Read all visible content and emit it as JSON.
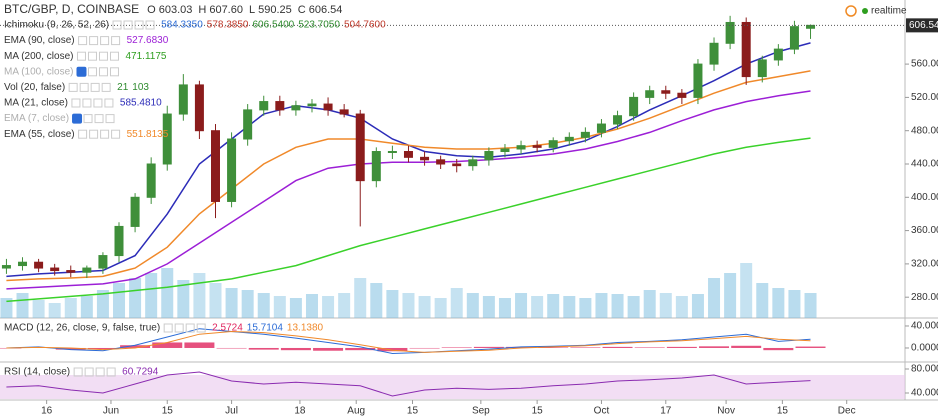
{
  "header": {
    "symbol": "BTC/GBP, D, COINBASE",
    "ohlc": [
      {
        "letter": "O",
        "value": "603.03"
      },
      {
        "letter": "H",
        "value": "607.60"
      },
      {
        "letter": "L",
        "value": "590.25"
      },
      {
        "letter": "C",
        "value": "606.54"
      }
    ]
  },
  "realtime": "realtime",
  "chart_data": [
    {
      "type": "candlestick",
      "x": [
        0,
        4,
        8,
        12,
        16,
        20,
        24,
        28,
        32,
        36,
        40,
        44,
        48,
        52,
        56,
        60,
        64,
        68,
        72,
        76,
        80,
        84,
        88,
        92,
        96,
        100,
        104,
        108,
        112,
        116,
        120,
        124,
        128,
        132,
        136,
        140,
        144,
        148,
        152,
        156,
        160,
        164,
        168,
        172,
        176,
        180,
        184,
        188,
        192,
        196,
        200
      ],
      "open": [
        315,
        318,
        322,
        315,
        312,
        310,
        315,
        330,
        365,
        400,
        440,
        500,
        535,
        480,
        395,
        470,
        505,
        515,
        505,
        510,
        512,
        505,
        500,
        420,
        455,
        455,
        448,
        445,
        440,
        438,
        445,
        455,
        458,
        462,
        460,
        468,
        472,
        478,
        488,
        498,
        520,
        528,
        525,
        520,
        560,
        585,
        610,
        545,
        565,
        578,
        603.03
      ],
      "high": [
        326,
        328,
        326,
        320,
        318,
        318,
        334,
        370,
        405,
        448,
        510,
        548,
        540,
        488,
        478,
        512,
        522,
        522,
        516,
        518,
        520,
        512,
        505,
        460,
        462,
        462,
        455,
        450,
        446,
        450,
        460,
        464,
        468,
        468,
        472,
        478,
        484,
        494,
        504,
        526,
        534,
        534,
        530,
        566,
        592,
        618,
        616,
        570,
        584,
        612,
        607.6
      ],
      "low": [
        308,
        312,
        310,
        306,
        304,
        303,
        308,
        322,
        358,
        392,
        432,
        492,
        470,
        375,
        388,
        462,
        498,
        498,
        498,
        502,
        498,
        496,
        365,
        412,
        446,
        442,
        438,
        434,
        430,
        432,
        438,
        448,
        452,
        454,
        454,
        462,
        466,
        472,
        482,
        492,
        512,
        518,
        512,
        512,
        552,
        578,
        535,
        538,
        558,
        572,
        590.25
      ],
      "close": [
        318,
        322,
        315,
        312,
        310,
        315,
        330,
        365,
        400,
        440,
        500,
        535,
        480,
        395,
        470,
        505,
        515,
        505,
        510,
        512,
        505,
        500,
        420,
        455,
        455,
        448,
        445,
        440,
        438,
        445,
        455,
        458,
        462,
        460,
        468,
        472,
        478,
        488,
        498,
        520,
        528,
        525,
        520,
        560,
        585,
        610,
        545,
        565,
        578,
        605,
        606.54
      ],
      "volume": [
        20,
        25,
        18,
        15,
        20,
        22,
        28,
        35,
        40,
        45,
        50,
        38,
        45,
        35,
        30,
        28,
        25,
        22,
        20,
        24,
        22,
        25,
        40,
        35,
        28,
        25,
        22,
        20,
        30,
        25,
        22,
        20,
        25,
        22,
        24,
        22,
        20,
        25,
        24,
        22,
        28,
        25,
        22,
        24,
        40,
        45,
        55,
        35,
        30,
        28,
        25
      ],
      "up_color": "#3f8f3a",
      "down_color": "#8b1c1c",
      "volume_color": "#7fbfe0",
      "lines": {
        "x": [
          0,
          8,
          16,
          24,
          32,
          40,
          48,
          56,
          64,
          72,
          80,
          88,
          96,
          104,
          112,
          120,
          128,
          136,
          144,
          152,
          160,
          168,
          176,
          184,
          192,
          200
        ],
        "series": [
          {
            "color": "#2c2cb8",
            "values": [
              305,
              308,
              310,
              312,
              330,
              380,
              440,
              470,
              500,
              510,
              505,
              495,
              470,
              455,
              450,
              448,
              452,
              458,
              468,
              485,
              505,
              522,
              540,
              560,
              575,
              585.48
            ]
          },
          {
            "color": "#f0892a",
            "values": [
              300,
              302,
              303,
              305,
              315,
              340,
              380,
              410,
              440,
              460,
              470,
              470,
              465,
              460,
              458,
              458,
              460,
              465,
              472,
              482,
              495,
              510,
              525,
              538,
              545,
              551.81
            ]
          },
          {
            "color": "#9c1fd6",
            "values": [
              290,
              292,
              294,
              296,
              302,
              320,
              345,
              370,
              395,
              420,
              435,
              440,
              442,
              442,
              443,
              445,
              448,
              452,
              458,
              467,
              478,
              492,
              505,
              515,
              522,
              527.68
            ]
          },
          {
            "color": "#3ad12a",
            "values": [
              275,
              278,
              281,
              284,
              288,
              292,
              297,
              302,
              310,
              318,
              330,
              342,
              352,
              362,
              372,
              382,
              392,
              402,
              412,
              422,
              432,
              442,
              452,
              460,
              466,
              471.12
            ]
          }
        ]
      },
      "xlim": [
        -1.6,
        223.5
      ],
      "xticks": [
        {
          "value": 10,
          "label": "16"
        },
        {
          "value": 26,
          "label": "Jun"
        },
        {
          "value": 40,
          "label": "15"
        },
        {
          "value": 56,
          "label": "Jul"
        },
        {
          "value": 73,
          "label": "18"
        },
        {
          "value": 87,
          "label": "Aug"
        },
        {
          "value": 101,
          "label": "15"
        },
        {
          "value": 118,
          "label": "Sep"
        },
        {
          "value": 132,
          "label": "15"
        },
        {
          "value": 148,
          "label": "Oct"
        },
        {
          "value": 164,
          "label": "17"
        },
        {
          "value": 179,
          "label": "Nov"
        },
        {
          "value": 193,
          "label": "15"
        },
        {
          "value": 209,
          "label": "Dec"
        }
      ],
      "ylim": [
        255,
        637
      ],
      "yticks": [
        {
          "value": 280,
          "label": "280.00"
        },
        {
          "value": 320,
          "label": "320.00"
        },
        {
          "value": 360,
          "label": "360.00"
        },
        {
          "value": 400,
          "label": "400.00"
        },
        {
          "value": 440,
          "label": "440.00"
        },
        {
          "value": 480,
          "label": "480.00"
        },
        {
          "value": 520,
          "label": "520.00"
        },
        {
          "value": 560,
          "label": "560.00"
        }
      ],
      "grid": false,
      "legend": [
        {
          "label": "Ichimoku (9, 26, 52, 26)",
          "values": [
            {
              "text": "584.3350",
              "color": "#2c6cd6"
            },
            {
              "text": "578.3850",
              "color": "#c0392b"
            },
            {
              "text": "606.5400",
              "color": "#2e8b2e"
            },
            {
              "text": "523.7050",
              "color": "#2e8b2e"
            },
            {
              "text": "504.7600",
              "color": "#c0392b"
            }
          ]
        },
        {
          "label": "EMA (90, close)",
          "values": [
            {
              "text": "527.6830",
              "color": "#9c1fd6"
            }
          ]
        },
        {
          "label": "MA (200, close)",
          "values": [
            {
              "text": "471.1175",
              "color": "#2e9e1f"
            }
          ]
        },
        {
          "label": "MA (100, close)",
          "values": [],
          "faded": true
        },
        {
          "label": "Vol (20, false)",
          "values": [
            {
              "text": "21",
              "color": "#2e8b2e"
            },
            {
              "text": "103",
              "color": "#2e8b2e"
            }
          ]
        },
        {
          "label": "MA (21, close)",
          "values": [
            {
              "text": "585.4810",
              "color": "#2c2cb8"
            }
          ]
        },
        {
          "label": "EMA (7, close)",
          "values": [],
          "faded": true
        },
        {
          "label": "EMA (55, close)",
          "values": [
            {
              "text": "551.8135",
              "color": "#f0892a"
            }
          ]
        }
      ]
    },
    {
      "type": "macd",
      "label": "MACD (12, 26, close, 9, false, true)",
      "value_texts": [
        {
          "text": "2.5724",
          "color": "#e0245e"
        },
        {
          "text": "15.7104",
          "color": "#2c6cd6"
        },
        {
          "text": "13.1380",
          "color": "#f0892a"
        }
      ],
      "x": [
        0,
        8,
        16,
        24,
        32,
        40,
        48,
        56,
        64,
        72,
        80,
        88,
        96,
        104,
        112,
        120,
        128,
        136,
        144,
        152,
        160,
        168,
        176,
        184,
        192,
        200
      ],
      "series": [
        {
          "color": "#e0245e",
          "style": "histogram",
          "values": [
            0,
            1,
            -3,
            -2,
            5,
            10,
            10,
            0,
            -3,
            -4,
            -5,
            -4,
            -6,
            0,
            1,
            2,
            2,
            1,
            1,
            2,
            1,
            2,
            3,
            4,
            -4,
            2.57
          ]
        },
        {
          "color": "#2c6cd6",
          "values": [
            0,
            2,
            -3,
            -5,
            5,
            20,
            35,
            30,
            25,
            18,
            10,
            2,
            -10,
            -8,
            -5,
            -2,
            2,
            3,
            5,
            10,
            12,
            15,
            20,
            25,
            12,
            15.71
          ]
        },
        {
          "color": "#f0892a",
          "values": [
            0,
            1,
            0,
            -3,
            0,
            10,
            25,
            30,
            28,
            22,
            15,
            6,
            -4,
            -8,
            -6,
            -4,
            0,
            2,
            4,
            8,
            11,
            13,
            17,
            21,
            16,
            13.14
          ]
        }
      ],
      "ylim": [
        -25.5,
        54.5
      ],
      "yticks": [
        {
          "value": 40,
          "label": "40.0000"
        },
        {
          "value": 0,
          "label": "0.0000"
        }
      ]
    },
    {
      "type": "rsi",
      "label": "RSI (14, close)",
      "value_texts": [
        {
          "text": "60.7294",
          "color": "#8a2bb0"
        }
      ],
      "x": [
        0,
        8,
        16,
        24,
        32,
        40,
        48,
        56,
        64,
        72,
        80,
        88,
        96,
        104,
        112,
        120,
        128,
        136,
        144,
        152,
        160,
        168,
        176,
        184,
        192,
        200
      ],
      "series": [
        {
          "color": "#8a2bb0",
          "values": [
            50,
            52,
            45,
            40,
            55,
            70,
            75,
            60,
            55,
            58,
            55,
            52,
            35,
            45,
            48,
            46,
            48,
            52,
            55,
            60,
            62,
            65,
            70,
            55,
            58,
            60.73
          ]
        }
      ],
      "band": [
        30,
        70
      ],
      "ylim": [
        28.3,
        91.7
      ],
      "yticks": [
        {
          "value": 80,
          "label": "80.0000"
        },
        {
          "value": 40,
          "label": "40.0000"
        }
      ]
    }
  ]
}
